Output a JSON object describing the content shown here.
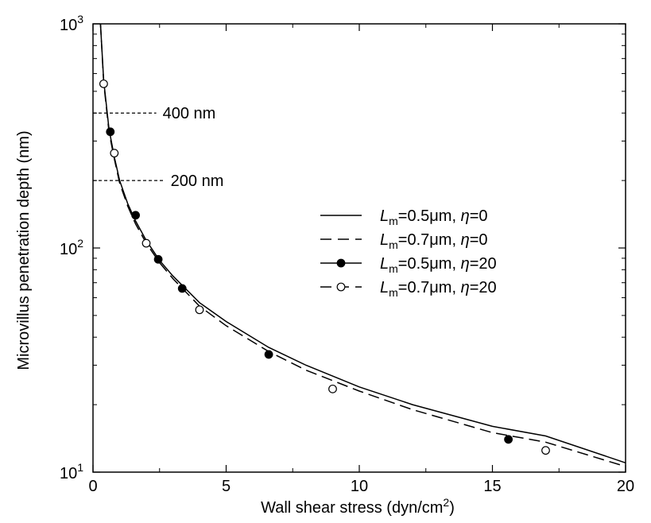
{
  "chart_data": {
    "type": "line",
    "title": "",
    "xlabel": "Wall shear stress (dyn/cm",
    "xlabel_sup": "2",
    "xlabel_suffix": ")",
    "ylabel": "Microvillus penetration depth (nm)",
    "x_scale": "linear",
    "y_scale": "log",
    "xlim": [
      0,
      20
    ],
    "ylim": [
      10,
      1000
    ],
    "x_ticks": [
      0,
      5,
      10,
      15,
      20
    ],
    "x_tick_labels": [
      "0",
      "5",
      "10",
      "15",
      "20"
    ],
    "y_ticks": [
      10,
      100,
      1000
    ],
    "y_tick_labels": [
      {
        "base": "10",
        "exp": "1"
      },
      {
        "base": "10",
        "exp": "2"
      },
      {
        "base": "10",
        "exp": "3"
      }
    ],
    "grid": false,
    "legend_position": "center-right",
    "series": [
      {
        "name": "=0.5μm, η=0",
        "legend": {
          "sym": "L",
          "sub": "m",
          "mid": "=0.5μm, ",
          "greek": "η",
          "tail": "=0"
        },
        "line_style": "solid",
        "marker": "none",
        "x": [
          0.28,
          0.4,
          0.6,
          0.8,
          1.0,
          1.3,
          1.6,
          2.0,
          2.5,
          3.0,
          4.0,
          5.0,
          6.6,
          8.0,
          10.0,
          12.0,
          15.0,
          17.0,
          20.0
        ],
        "y": [
          1000,
          560,
          340,
          255,
          200,
          158,
          132,
          108,
          88,
          75,
          57,
          47,
          36,
          30,
          24,
          20,
          16,
          14.5,
          11
        ]
      },
      {
        "name": "=0.7μm, η=0",
        "legend": {
          "sym": "L",
          "sub": "m",
          "mid": "=0.7μm, ",
          "greek": "η",
          "tail": "=0"
        },
        "line_style": "dashed",
        "marker": "none",
        "x": [
          0.28,
          0.4,
          0.6,
          0.8,
          1.0,
          1.3,
          1.6,
          2.0,
          2.5,
          3.0,
          4.0,
          5.0,
          6.6,
          8.0,
          10.0,
          12.0,
          15.0,
          17.0,
          20.0
        ],
        "y": [
          1000,
          550,
          330,
          250,
          195,
          154,
          128,
          105,
          86,
          73,
          55,
          45,
          34.5,
          28.5,
          23,
          19,
          15,
          13.6,
          10.6
        ]
      },
      {
        "name": "=0.5μm, η=20",
        "legend": {
          "sym": "L",
          "sub": "m",
          "mid": "=0.5μm, ",
          "greek": "η",
          "tail": "=20"
        },
        "line_style": "solid",
        "marker": "filled-circle",
        "x": [
          0.65,
          1.6,
          2.45,
          3.35,
          6.6,
          15.6
        ],
        "y": [
          330,
          140,
          89,
          66,
          33.5,
          14
        ]
      },
      {
        "name": "=0.7μm, η=20",
        "legend": {
          "sym": "L",
          "sub": "m",
          "mid": "=0.7μm, ",
          "greek": "η",
          "tail": "=20"
        },
        "line_style": "dashed",
        "marker": "open-circle",
        "x": [
          0.4,
          0.8,
          2.0,
          4.0,
          9.0,
          17.0
        ],
        "y": [
          540,
          265,
          105,
          53,
          23.5,
          12.5
        ]
      }
    ],
    "annotations": [
      {
        "text": "400 nm",
        "y": 400,
        "x_end": 1.6
      },
      {
        "text": "200 nm",
        "y": 200,
        "x_end": 1.9
      }
    ]
  },
  "colors": {
    "ink": "#000000",
    "background": "#ffffff"
  }
}
